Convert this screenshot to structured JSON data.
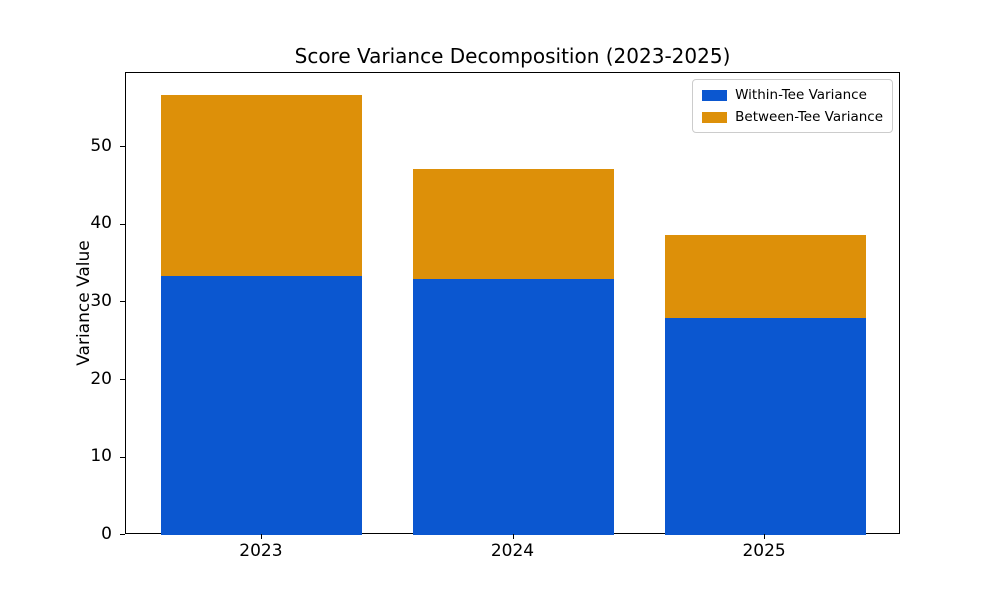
{
  "chart_data": {
    "type": "bar",
    "stacked": true,
    "title": "Score Variance Decomposition (2023-2025)",
    "xlabel": "",
    "ylabel": "Variance Value",
    "categories": [
      "2023",
      "2024",
      "2025"
    ],
    "series": [
      {
        "name": "Within-Tee Variance",
        "color": "#0b57d0",
        "values": [
          33.4,
          33.0,
          28.0
        ]
      },
      {
        "name": "Between-Tee Variance",
        "color": "#dd9009",
        "values": [
          23.4,
          14.2,
          10.7
        ]
      }
    ],
    "totals": [
      56.8,
      47.2,
      38.7
    ],
    "ylim": [
      0,
      59.6
    ],
    "yticks": [
      0,
      10,
      20,
      30,
      40,
      50
    ],
    "grid": false,
    "legend_position": "upper right",
    "background_color": "#ffffff",
    "spine_color": "#000000"
  }
}
